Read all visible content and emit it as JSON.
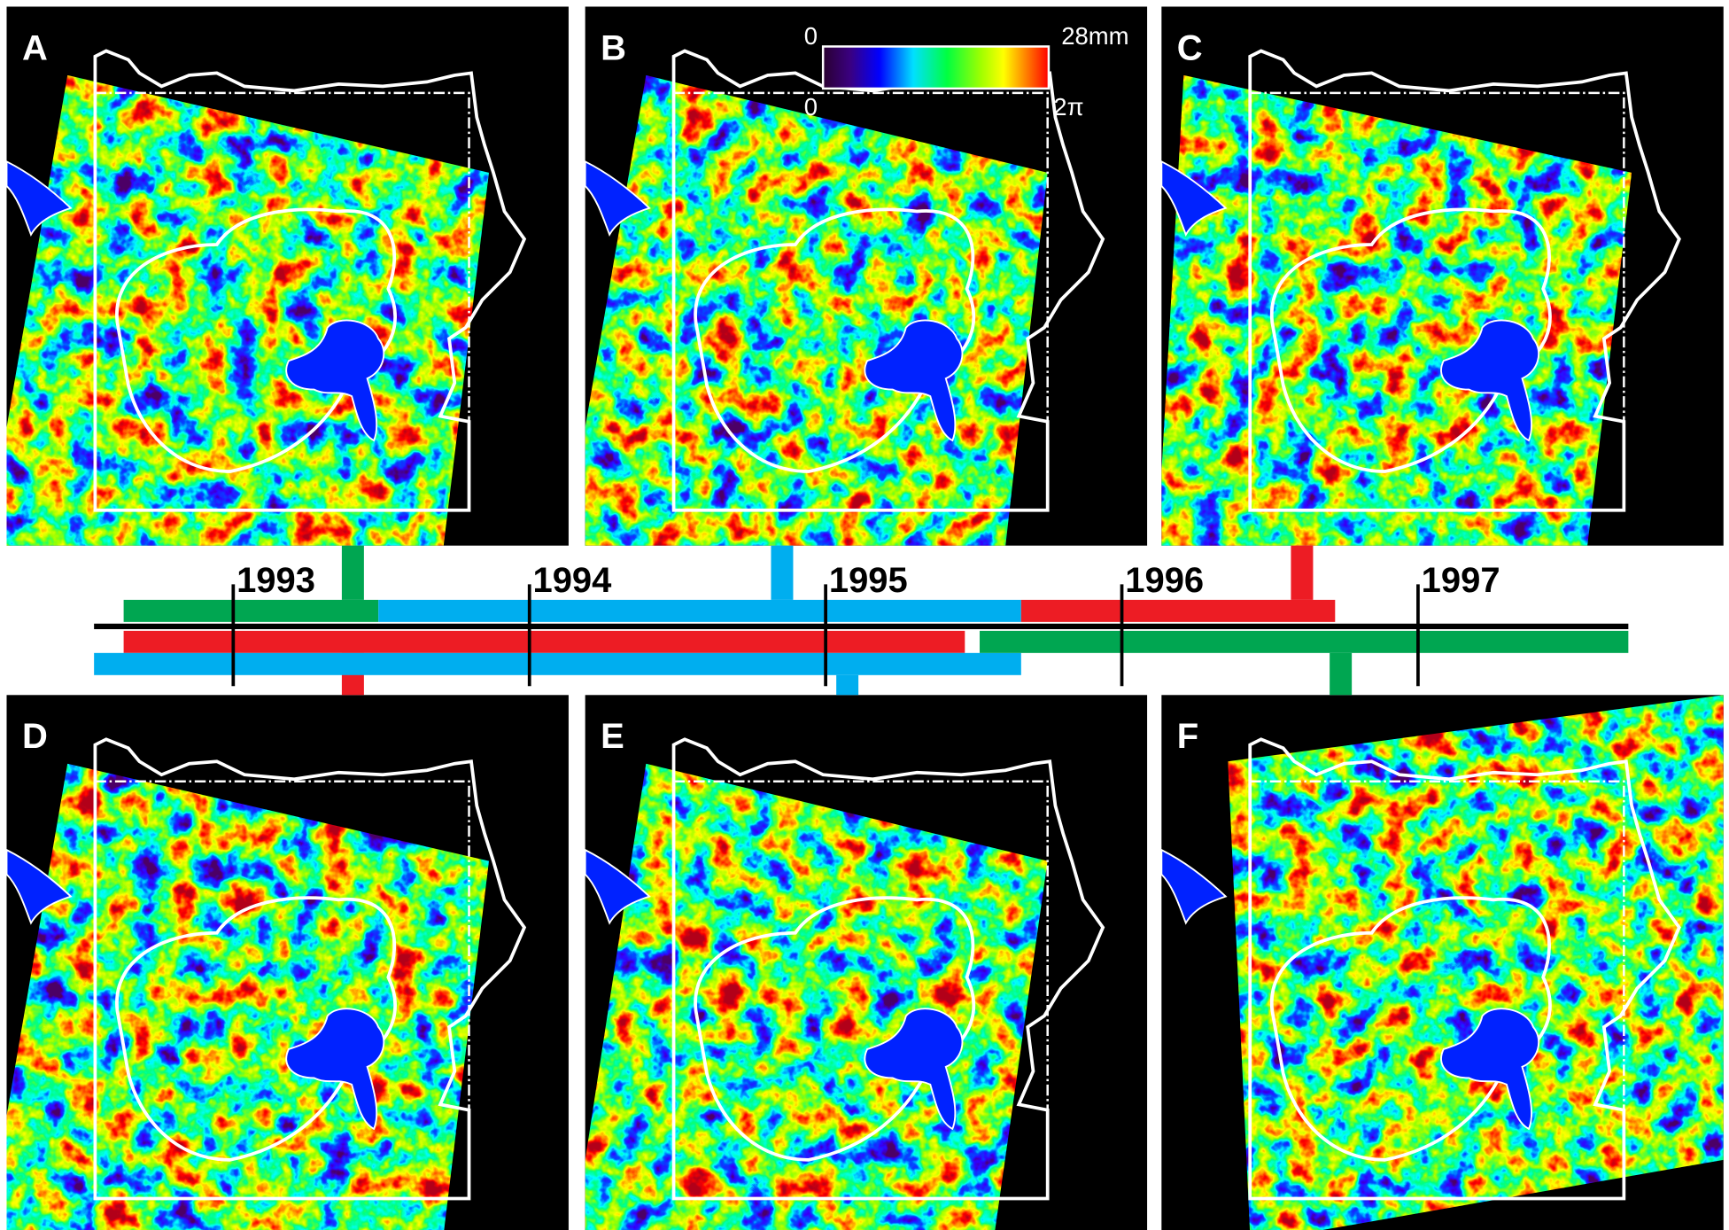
{
  "panels": [
    {
      "label": "A"
    },
    {
      "label": "B"
    },
    {
      "label": "C"
    },
    {
      "label": "D"
    },
    {
      "label": "E"
    },
    {
      "label": "F"
    }
  ],
  "colorbar": {
    "top": {
      "min": 0,
      "max": "28mm"
    },
    "bottom": {
      "min": 0,
      "max": "2π"
    }
  },
  "timeline": {
    "xlim": [
      1992.53,
      1997.71
    ],
    "years": [
      1993,
      1994,
      1995,
      1996,
      1997
    ],
    "intervals": [
      {
        "start": 1992.63,
        "end": 1993.49,
        "color": "#00a651"
      },
      {
        "start": 1993.49,
        "end": 1995.66,
        "color": "#00aeef"
      },
      {
        "start": 1995.66,
        "end": 1996.72,
        "color": "#ed1c24"
      },
      {
        "start": 1992.63,
        "end": 1995.47,
        "color": "#ed1c24"
      },
      {
        "start": 1992.53,
        "end": 1995.66,
        "color": "#00aeef"
      },
      {
        "start": 1995.52,
        "end": 1997.71,
        "color": "#00a651"
      }
    ]
  }
}
